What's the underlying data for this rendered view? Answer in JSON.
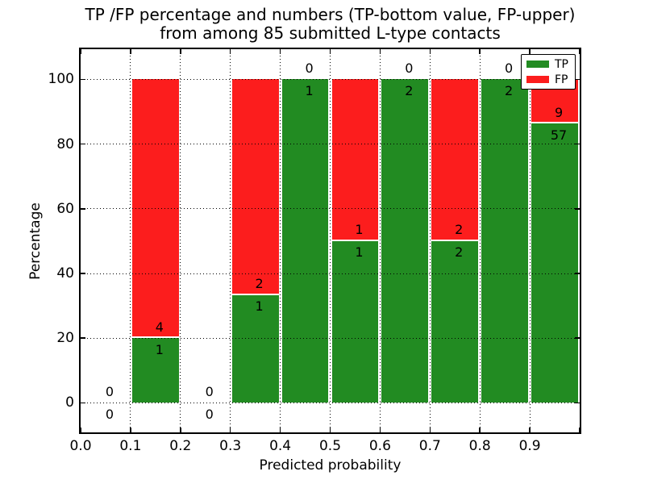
{
  "title": {
    "line1": "TP /FP percentage and numbers (TP-bottom value, FP-upper)",
    "line2": "from among 85 submitted L-type contacts"
  },
  "axes": {
    "x_label": "Predicted probability",
    "y_label": "Percentage",
    "x_tick_labels": [
      "0.0",
      "0.1",
      "0.2",
      "0.3",
      "0.4",
      "0.5",
      "0.6",
      "0.7",
      "0.8",
      "0.9"
    ],
    "y_tick_labels": [
      "0",
      "20",
      "40",
      "60",
      "80",
      "100"
    ]
  },
  "legend": {
    "items": [
      {
        "label": "TP",
        "color": "#228b22"
      },
      {
        "label": "FP",
        "color": "#fc1d1d"
      }
    ],
    "position": "upper right"
  },
  "colors": {
    "tp_green": "#228b22",
    "fp_red": "#fc1d1d",
    "grid": "#000000",
    "background": "#ffffff"
  },
  "chart_data": {
    "type": "bar",
    "stacked": true,
    "title": "TP /FP percentage and numbers (TP-bottom value, FP-upper) from among 85 submitted L-type contacts",
    "xlabel": "Predicted probability",
    "ylabel": "Percentage",
    "xlim": [
      0.0,
      1.0
    ],
    "ylim": [
      0,
      100
    ],
    "grid": "dotted",
    "legend_position": "upper right",
    "total_contacts": 85,
    "y_ticks": [
      0,
      20,
      40,
      60,
      80,
      100
    ],
    "x_ticks": [
      0.0,
      0.1,
      0.2,
      0.3,
      0.4,
      0.5,
      0.6,
      0.7,
      0.8,
      0.9,
      1.0
    ],
    "bins": [
      {
        "range": [
          0.0,
          0.1
        ],
        "tp_count": 0,
        "fp_count": 0,
        "tp_percent": 0,
        "fp_percent": 0
      },
      {
        "range": [
          0.1,
          0.2
        ],
        "tp_count": 1,
        "fp_count": 4,
        "tp_percent": 20,
        "fp_percent": 80
      },
      {
        "range": [
          0.2,
          0.3
        ],
        "tp_count": 0,
        "fp_count": 0,
        "tp_percent": 0,
        "fp_percent": 0
      },
      {
        "range": [
          0.3,
          0.4
        ],
        "tp_count": 1,
        "fp_count": 2,
        "tp_percent": 33.333,
        "fp_percent": 66.667
      },
      {
        "range": [
          0.4,
          0.5
        ],
        "tp_count": 1,
        "fp_count": 0,
        "tp_percent": 100,
        "fp_percent": 0
      },
      {
        "range": [
          0.5,
          0.6
        ],
        "tp_count": 1,
        "fp_count": 1,
        "tp_percent": 50,
        "fp_percent": 50
      },
      {
        "range": [
          0.6,
          0.7
        ],
        "tp_count": 2,
        "fp_count": 0,
        "tp_percent": 100,
        "fp_percent": 0
      },
      {
        "range": [
          0.7,
          0.8
        ],
        "tp_count": 2,
        "fp_count": 2,
        "tp_percent": 50,
        "fp_percent": 50
      },
      {
        "range": [
          0.8,
          0.9
        ],
        "tp_count": 2,
        "fp_count": 0,
        "tp_percent": 100,
        "fp_percent": 0
      },
      {
        "range": [
          0.9,
          1.0
        ],
        "tp_count": 57,
        "fp_count": 9,
        "tp_percent": 86.364,
        "fp_percent": 13.636
      }
    ]
  }
}
